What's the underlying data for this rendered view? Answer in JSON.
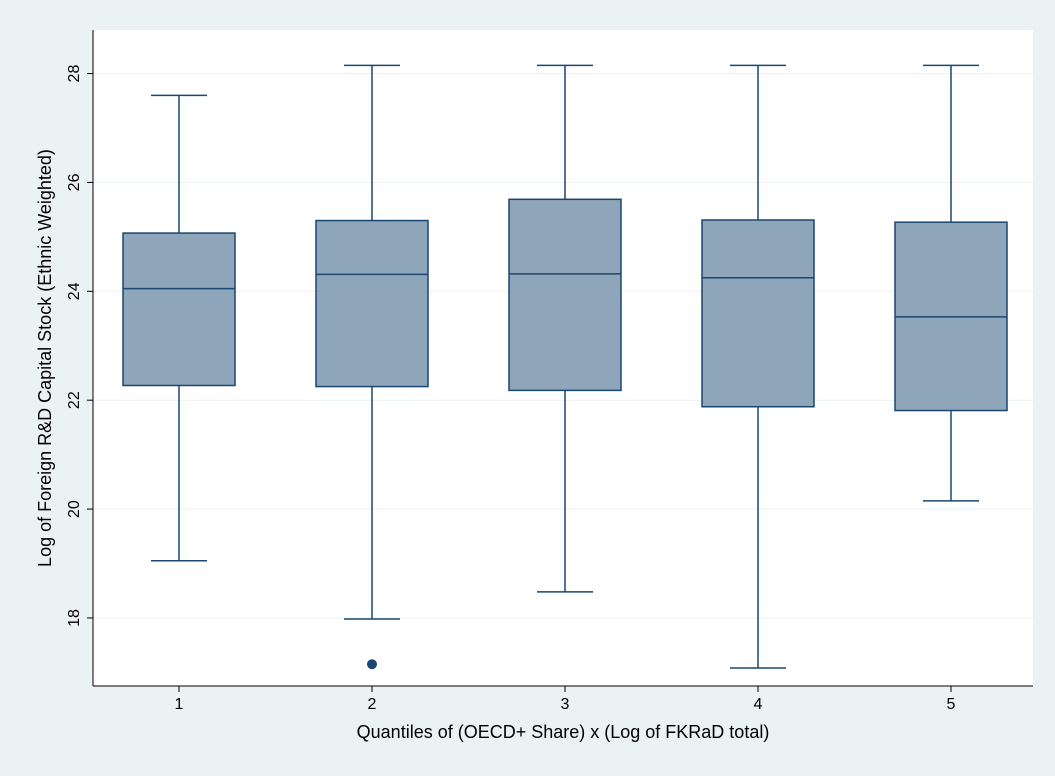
{
  "chart_data": {
    "type": "box",
    "xlabel": "Quantiles of (OECD+ Share) x (Log of FKRaD total)",
    "ylabel": "Log of Foreign R&D Capital Stock (Ethnic Weighted)",
    "categories": [
      "1",
      "2",
      "3",
      "4",
      "5"
    ],
    "y_ticks": [
      "18",
      "20",
      "22",
      "24",
      "26",
      "28"
    ],
    "ylim": [
      16.75,
      28.8
    ],
    "grid": true,
    "boxes": [
      {
        "category": "1",
        "whisker_low": 19.05,
        "q1": 22.27,
        "median": 24.05,
        "q3": 25.07,
        "whisker_high": 27.6,
        "outliers": []
      },
      {
        "category": "2",
        "whisker_low": 17.98,
        "q1": 22.25,
        "median": 24.31,
        "q3": 25.3,
        "whisker_high": 28.15,
        "outliers": [
          17.15
        ]
      },
      {
        "category": "3",
        "whisker_low": 18.48,
        "q1": 22.18,
        "median": 24.32,
        "q3": 25.69,
        "whisker_high": 28.15,
        "outliers": []
      },
      {
        "category": "4",
        "whisker_low": 17.08,
        "q1": 21.88,
        "median": 24.25,
        "q3": 25.31,
        "whisker_high": 28.15,
        "outliers": []
      },
      {
        "category": "5",
        "whisker_low": 20.15,
        "q1": 21.81,
        "median": 23.53,
        "q3": 25.27,
        "whisker_high": 28.15,
        "outliers": []
      }
    ],
    "colors": {
      "box_fill": "#8fa5ba",
      "box_stroke": "#1a476f",
      "outlier": "#1a476f",
      "plot_bg": "#ffffff",
      "outer_bg": "#eaf2f3",
      "grid": "#eaf2f3"
    }
  }
}
